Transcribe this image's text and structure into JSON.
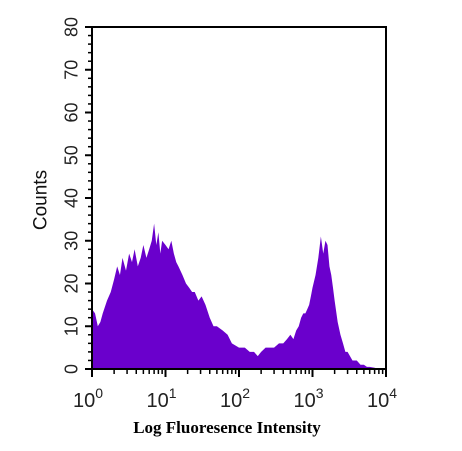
{
  "chart_data": {
    "type": "area",
    "title": "",
    "xlabel": "Log Fluoresence Intensity",
    "ylabel": "Counts",
    "x_scale": "log",
    "xlim": [
      1,
      10000
    ],
    "ylim": [
      0,
      80
    ],
    "x_ticks": [
      {
        "value": 1,
        "base": "10",
        "exp": "0"
      },
      {
        "value": 10,
        "base": "10",
        "exp": "1"
      },
      {
        "value": 100,
        "base": "10",
        "exp": "2"
      },
      {
        "value": 1000,
        "base": "10",
        "exp": "3"
      },
      {
        "value": 10000,
        "base": "10",
        "exp": "4"
      }
    ],
    "y_ticks": [
      0,
      10,
      20,
      30,
      40,
      50,
      60,
      70,
      80
    ],
    "grid": false,
    "legend": "none",
    "fill_color": "#6a00cc",
    "series": [
      {
        "x": [
          1,
          1.1,
          1.2,
          1.3,
          1.4,
          1.6,
          1.8,
          2.0,
          2.2,
          2.4,
          2.6,
          2.9,
          3.2,
          3.5,
          3.8,
          4.2,
          4.6,
          5.0,
          5.5,
          6.0,
          6.5,
          7.0,
          7.5,
          8.0,
          8.5,
          9.0,
          10,
          11,
          12,
          13,
          14,
          15,
          17,
          19,
          21,
          23,
          25,
          28,
          31,
          35,
          40,
          45,
          50,
          60,
          70,
          80,
          100,
          120,
          140,
          160,
          180,
          200,
          230,
          260,
          300,
          350,
          400,
          450,
          500,
          550,
          600,
          650,
          700,
          750,
          800,
          850,
          900,
          950,
          1000,
          1100,
          1200,
          1300,
          1400,
          1500,
          1600,
          1700,
          1800,
          1900,
          2000,
          2200,
          2400,
          2600,
          2800,
          3000,
          3500,
          4000,
          4500,
          5000,
          5500,
          6000,
          7000,
          8000,
          9000,
          10000
        ],
        "y": [
          14,
          13,
          10,
          11,
          13,
          16,
          18,
          21,
          24,
          22,
          26,
          23,
          27,
          25,
          28,
          24,
          26,
          29,
          26,
          28,
          30,
          34,
          29,
          32,
          27,
          30,
          29,
          28,
          30,
          27,
          25,
          24,
          22,
          20,
          19,
          18,
          18,
          16,
          17,
          15,
          12,
          10,
          10,
          9,
          8,
          6,
          5,
          5,
          4,
          4,
          3,
          4,
          5,
          5,
          5,
          6,
          6,
          7,
          8,
          7,
          9,
          10,
          12,
          13,
          13,
          14,
          15,
          17,
          19,
          22,
          26,
          31,
          27,
          30,
          29,
          24,
          22,
          19,
          16,
          11,
          8,
          6,
          4,
          4,
          2,
          2,
          1,
          1,
          0.5,
          0.5,
          0.3,
          0,
          0,
          0
        ]
      }
    ]
  }
}
